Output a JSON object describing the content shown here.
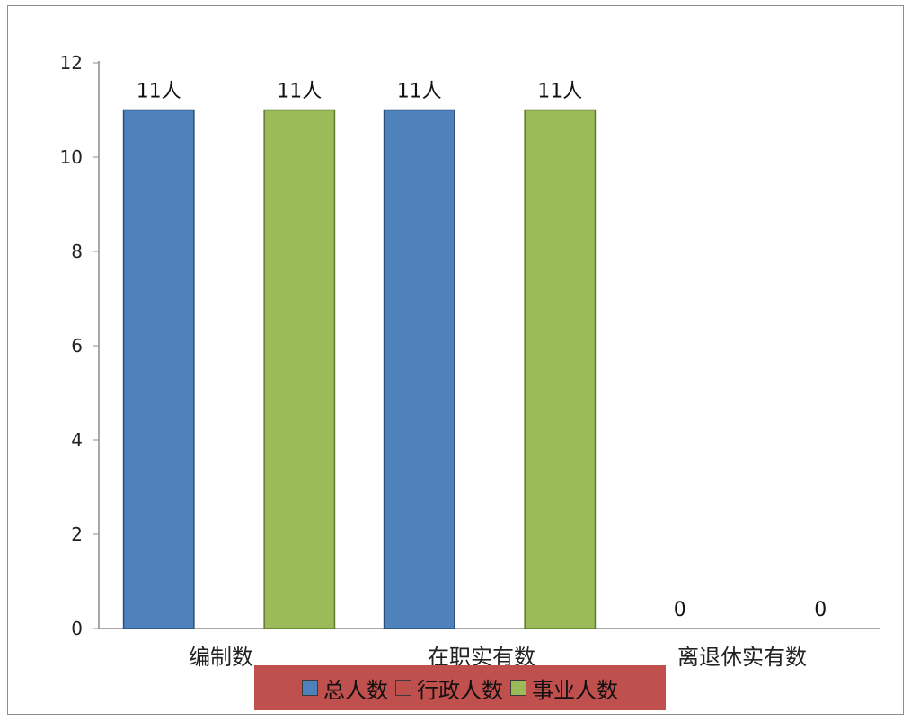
{
  "chart_data": {
    "type": "bar",
    "title": "",
    "xlabel": "",
    "ylabel": "",
    "categories": [
      "编制数",
      "在职实有数",
      "离退休实有数"
    ],
    "series": [
      {
        "name": "总人数",
        "values": [
          11,
          11,
          0
        ],
        "labels": [
          "11人",
          "11人",
          "0"
        ],
        "color": "#4f81bd",
        "stroke": "#2c4d75"
      },
      {
        "name": "行政人数",
        "values": [
          0,
          0,
          0
        ],
        "labels": [
          "",
          "",
          ""
        ],
        "color": "#c0504d",
        "stroke": "#7f2a28"
      },
      {
        "name": "事业人数",
        "values": [
          11,
          11,
          0
        ],
        "labels": [
          "11人",
          "11人",
          "0"
        ],
        "color": "#9bbb59",
        "stroke": "#5e7a2a"
      }
    ],
    "yticks": [
      "0",
      "2",
      "4",
      "6",
      "8",
      "10",
      "12"
    ],
    "ylim": [
      0,
      12
    ],
    "grid": false,
    "legend_position": "bottom"
  }
}
